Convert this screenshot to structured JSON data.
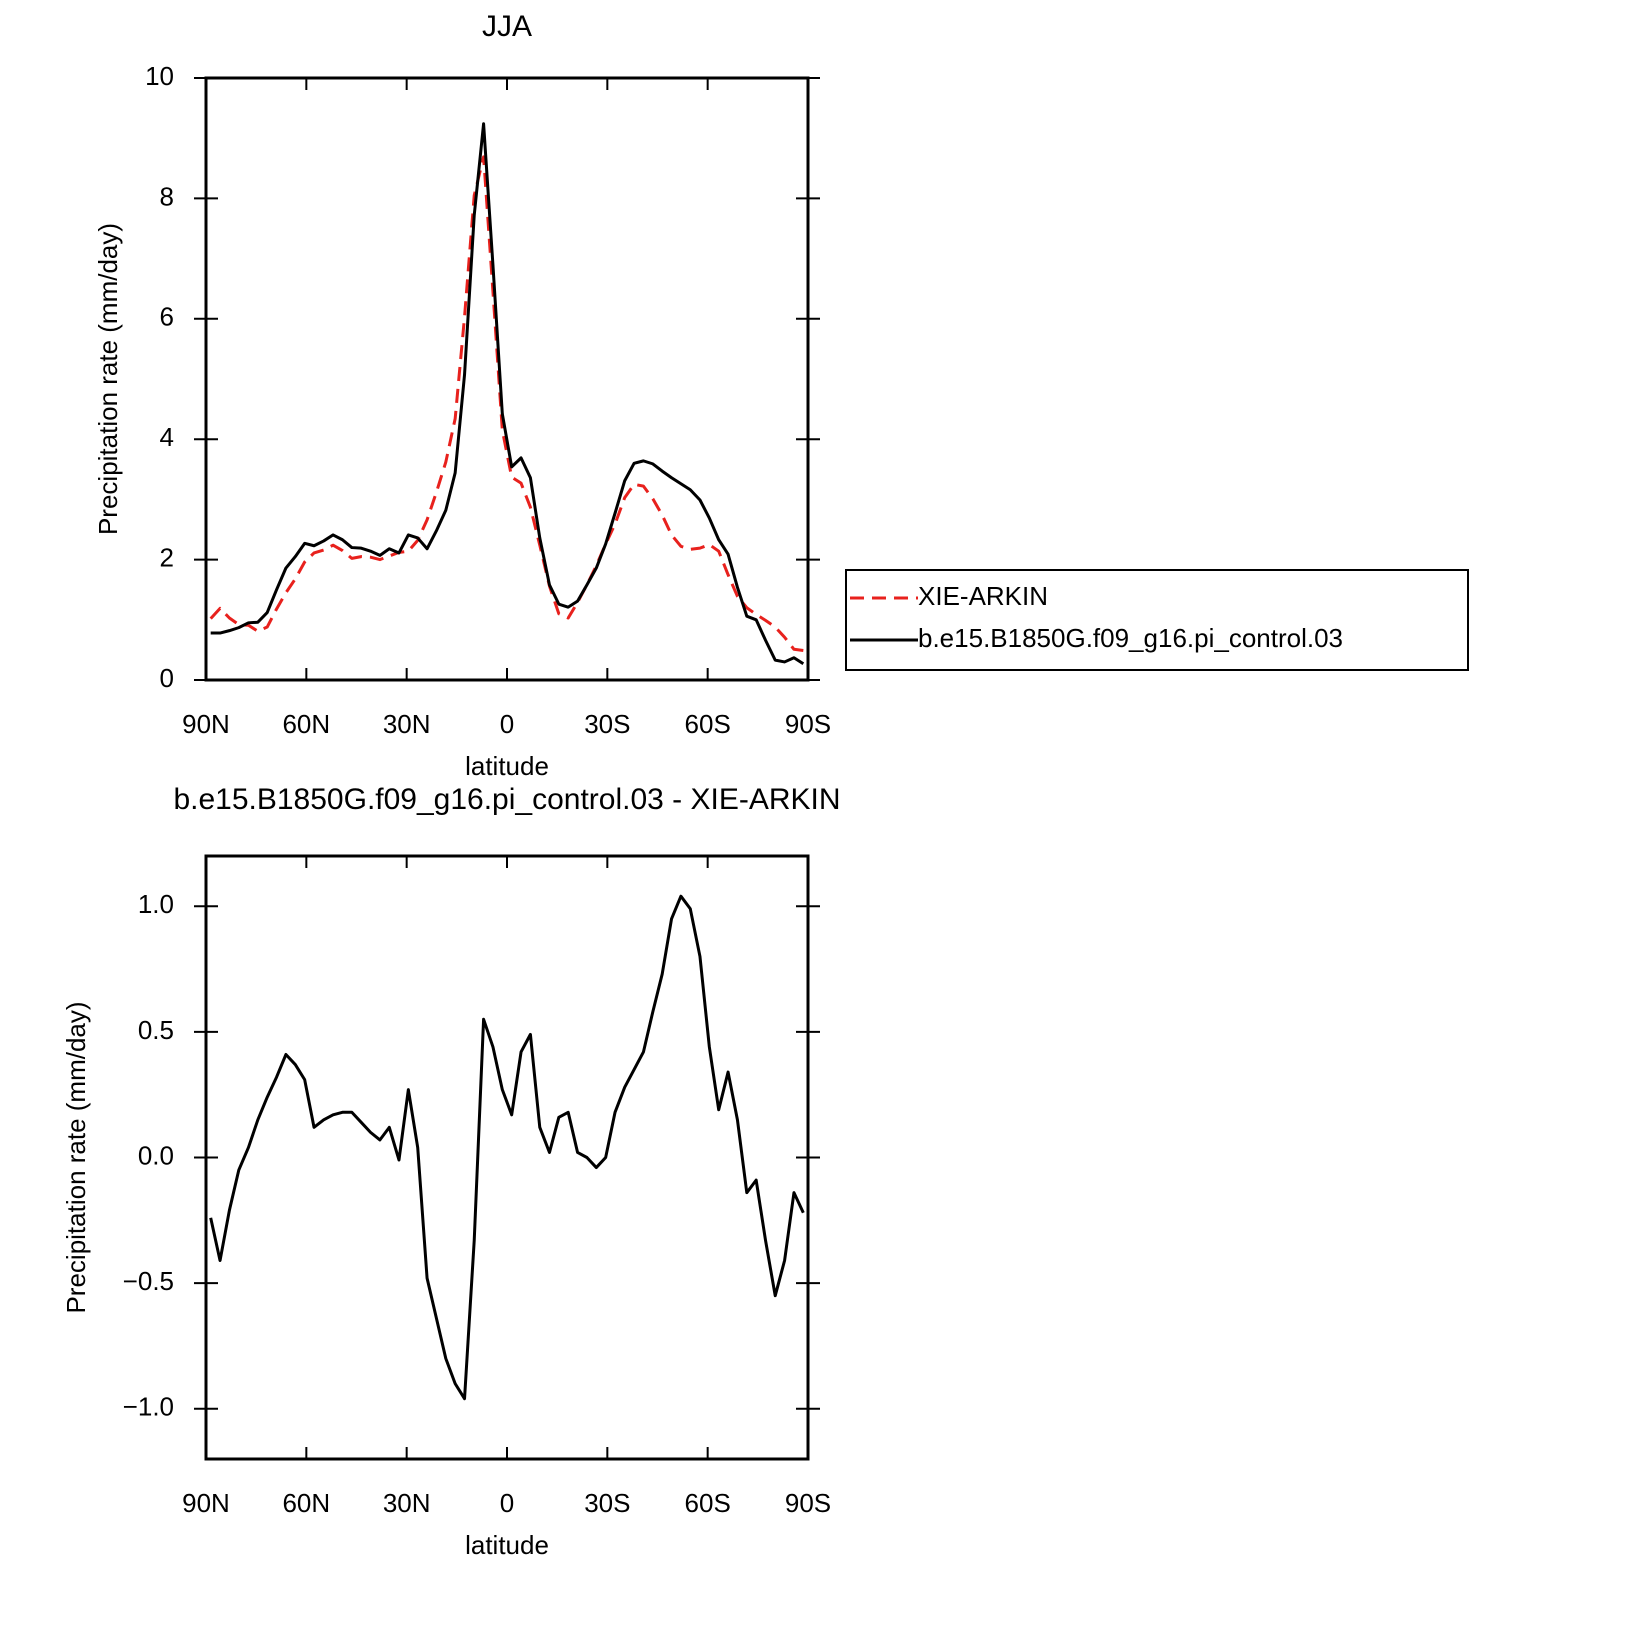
{
  "chart_data": [
    {
      "type": "line",
      "title": "JJA",
      "xlabel": "latitude",
      "ylabel": "Precipitation rate (mm/day)",
      "x": [
        88.6,
        85.8,
        83.0,
        80.2,
        77.3,
        74.5,
        71.7,
        68.9,
        66.1,
        63.3,
        60.5,
        57.7,
        54.8,
        52.0,
        49.2,
        46.4,
        43.6,
        40.8,
        38.0,
        35.2,
        32.3,
        29.5,
        26.7,
        23.9,
        21.1,
        18.3,
        15.5,
        12.7,
        9.8,
        7.0,
        4.2,
        1.4,
        -1.4,
        -4.2,
        -7.0,
        -9.8,
        -12.7,
        -15.5,
        -18.3,
        -21.1,
        -23.9,
        -26.7,
        -29.5,
        -32.3,
        -35.2,
        -38.0,
        -40.8,
        -43.6,
        -46.4,
        -49.2,
        -52.0,
        -54.8,
        -57.7,
        -60.5,
        -63.3,
        -66.1,
        -68.9,
        -71.7,
        -74.5,
        -77.3,
        -80.2,
        -83.0,
        -85.8,
        -88.6
      ],
      "series": [
        {
          "name": "XIE-ARKIN",
          "color": "#e8211d",
          "linestyle": "dashed",
          "values": [
            1.02,
            1.19,
            1.03,
            0.92,
            0.91,
            0.81,
            0.88,
            1.18,
            1.45,
            1.68,
            1.96,
            2.11,
            2.16,
            2.24,
            2.15,
            2.02,
            2.05,
            2.04,
            2.0,
            2.06,
            2.12,
            2.14,
            2.32,
            2.66,
            3.12,
            3.62,
            4.34,
            6.03,
            8.05,
            8.69,
            6.45,
            4.15,
            3.37,
            3.27,
            2.87,
            2.24,
            1.56,
            1.1,
            1.03,
            1.29,
            1.58,
            1.9,
            2.26,
            2.59,
            3.03,
            3.25,
            3.22,
            3.01,
            2.74,
            2.41,
            2.22,
            2.17,
            2.19,
            2.25,
            2.14,
            1.75,
            1.39,
            1.2,
            1.09,
            0.99,
            0.88,
            0.71,
            0.51,
            0.49
          ]
        },
        {
          "name": "b.e15.B1850G.f09_g16.pi_control.03",
          "color": "#000000",
          "linestyle": "solid",
          "values": [
            0.78,
            0.78,
            0.82,
            0.87,
            0.95,
            0.96,
            1.12,
            1.5,
            1.86,
            2.05,
            2.27,
            2.23,
            2.31,
            2.41,
            2.33,
            2.2,
            2.19,
            2.14,
            2.07,
            2.18,
            2.11,
            2.41,
            2.36,
            2.18,
            2.48,
            2.82,
            3.44,
            5.07,
            7.72,
            9.24,
            6.89,
            4.42,
            3.54,
            3.69,
            3.36,
            2.36,
            1.58,
            1.26,
            1.21,
            1.31,
            1.58,
            1.86,
            2.26,
            2.77,
            3.31,
            3.6,
            3.64,
            3.59,
            3.47,
            3.36,
            3.26,
            3.16,
            2.99,
            2.69,
            2.33,
            2.09,
            1.54,
            1.06,
            1.0,
            0.66,
            0.33,
            0.3,
            0.37,
            0.27
          ]
        }
      ],
      "xlim": [
        90,
        -90
      ],
      "xticks": [
        {
          "value": 90,
          "label": "90N"
        },
        {
          "value": 60,
          "label": "60N"
        },
        {
          "value": 30,
          "label": "30N"
        },
        0,
        {
          "value": -30,
          "label": "30S"
        },
        {
          "value": -60,
          "label": "60S"
        },
        {
          "value": -90,
          "label": "90S"
        }
      ],
      "ylim": [
        0,
        10
      ],
      "yticks": [
        0,
        2,
        4,
        6,
        8,
        10
      ],
      "grid": false,
      "legend": "right"
    },
    {
      "type": "line",
      "title": "b.e15.B1850G.f09_g16.pi_control.03 - XIE-ARKIN",
      "xlabel": "latitude",
      "ylabel": "Precipitation rate (mm/day)",
      "x": [
        88.6,
        85.8,
        83.0,
        80.2,
        77.3,
        74.5,
        71.7,
        68.9,
        66.1,
        63.3,
        60.5,
        57.7,
        54.8,
        52.0,
        49.2,
        46.4,
        43.6,
        40.8,
        38.0,
        35.2,
        32.3,
        29.5,
        26.7,
        23.9,
        21.1,
        18.3,
        15.5,
        12.7,
        9.8,
        7.0,
        4.2,
        1.4,
        -1.4,
        -4.2,
        -7.0,
        -9.8,
        -12.7,
        -15.5,
        -18.3,
        -21.1,
        -23.9,
        -26.7,
        -29.5,
        -32.3,
        -35.2,
        -38.0,
        -40.8,
        -43.6,
        -46.4,
        -49.2,
        -52.0,
        -54.8,
        -57.7,
        -60.5,
        -63.3,
        -66.1,
        -68.9,
        -71.7,
        -74.5,
        -77.3,
        -80.2,
        -83.0,
        -85.8,
        -88.6
      ],
      "series": [
        {
          "color": "#000000",
          "linestyle": "solid",
          "values": [
            -0.24,
            -0.41,
            -0.21,
            -0.05,
            0.04,
            0.15,
            0.24,
            0.32,
            0.41,
            0.37,
            0.31,
            0.12,
            0.15,
            0.17,
            0.18,
            0.18,
            0.14,
            0.1,
            0.07,
            0.12,
            -0.01,
            0.27,
            0.04,
            -0.48,
            -0.64,
            -0.8,
            -0.9,
            -0.96,
            -0.33,
            0.55,
            0.44,
            0.27,
            0.17,
            0.42,
            0.49,
            0.12,
            0.02,
            0.16,
            0.18,
            0.02,
            0.0,
            -0.04,
            0.0,
            0.18,
            0.28,
            0.35,
            0.42,
            0.58,
            0.73,
            0.95,
            1.04,
            0.99,
            0.8,
            0.44,
            0.19,
            0.34,
            0.15,
            -0.14,
            -0.09,
            -0.33,
            -0.55,
            -0.41,
            -0.14,
            -0.22
          ]
        }
      ],
      "xlim": [
        90,
        -90
      ],
      "xticks": [
        {
          "value": 90,
          "label": "90N"
        },
        {
          "value": 60,
          "label": "60N"
        },
        {
          "value": 30,
          "label": "30N"
        },
        0,
        {
          "value": -30,
          "label": "30S"
        },
        {
          "value": -60,
          "label": "60S"
        },
        {
          "value": -90,
          "label": "90S"
        }
      ],
      "ylim": [
        -1.2,
        1.2
      ],
      "yticks": [
        {
          "value": -1,
          "label": "−1.0"
        },
        {
          "value": -0.5,
          "label": "−0.5"
        },
        {
          "value": 0,
          "label": "0.0"
        },
        0.5,
        {
          "value": 1,
          "label": "1.0"
        }
      ],
      "grid": false
    }
  ]
}
